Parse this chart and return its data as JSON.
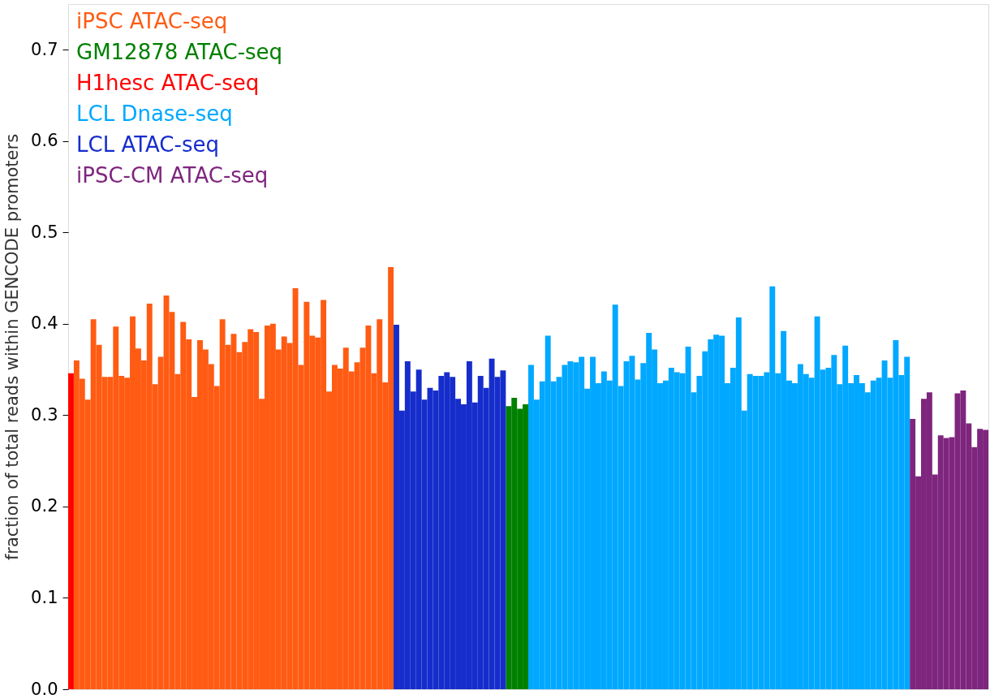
{
  "chart_data": {
    "type": "bar",
    "ylabel": "fraction of total reads within GENCODE promoters",
    "ylim": [
      0,
      0.75
    ],
    "yticks": [
      {
        "value": 0,
        "label": "0.0"
      },
      0.1,
      0.2,
      0.3,
      0.4,
      0.5,
      0.6,
      0.7
    ],
    "grid": false,
    "legend": "top left",
    "stacked": true,
    "categories": [
      null,
      null,
      null,
      null,
      null,
      null,
      null,
      null,
      null,
      null,
      null,
      null,
      null,
      null,
      null,
      null,
      null,
      null,
      null,
      null,
      null,
      null,
      null,
      null,
      null,
      null,
      null,
      null,
      null,
      null,
      null,
      null,
      null,
      null,
      null,
      null,
      null,
      null,
      null,
      null,
      null,
      null,
      null,
      null,
      null,
      null,
      null,
      null,
      null,
      null,
      null,
      null,
      null,
      null,
      null,
      null,
      null,
      null,
      null,
      null,
      null,
      null,
      null,
      null,
      null,
      null,
      null,
      null,
      null,
      null,
      null,
      null,
      null,
      null,
      null,
      null,
      null,
      null,
      null,
      null,
      null,
      null,
      null,
      null,
      null,
      null,
      null,
      null,
      null,
      null,
      null,
      null,
      null,
      null,
      null,
      null,
      null,
      null,
      null,
      null,
      null,
      null,
      null,
      null,
      null,
      null,
      null,
      null,
      null,
      null,
      null,
      null,
      null,
      null,
      null,
      null,
      null,
      null,
      null,
      null,
      null,
      null,
      null,
      null,
      null,
      null,
      null,
      null,
      null,
      null,
      null,
      null,
      null,
      null,
      null,
      null,
      null,
      null,
      null,
      null,
      null,
      null,
      null,
      null,
      null,
      null,
      null,
      null,
      null,
      null,
      null,
      null,
      null,
      null,
      null,
      null,
      null,
      null,
      null,
      null,
      null,
      null,
      null,
      null
    ],
    "series": [
      {
        "name": "iPSC ATAC-seq",
        "color": "#ff5b13",
        "values": [
          null,
          0.36,
          0.34,
          0.317,
          0.405,
          0.377,
          0.342,
          0.342,
          0.397,
          0.343,
          0.341,
          0.408,
          0.373,
          0.36,
          0.422,
          0.334,
          0.364,
          0.431,
          0.413,
          0.345,
          0.402,
          0.383,
          0.32,
          0.382,
          0.372,
          0.356,
          0.332,
          0.405,
          0.377,
          0.389,
          0.369,
          0.38,
          0.394,
          0.391,
          0.318,
          0.398,
          0.4,
          0.372,
          0.386,
          0.379,
          0.439,
          0.355,
          0.424,
          0.387,
          0.385,
          0.426,
          0.326,
          0.355,
          0.351,
          0.374,
          0.348,
          0.358,
          0.374,
          0.398,
          0.346,
          0.405,
          0.336,
          0.462,
          null,
          null,
          null,
          null,
          null,
          null,
          null,
          null,
          null,
          null,
          null,
          null,
          null,
          null,
          null,
          null,
          null,
          null,
          null,
          null,
          null,
          null,
          null,
          null,
          null,
          null,
          null,
          null,
          null,
          null,
          null,
          null,
          null,
          null,
          null,
          null,
          null,
          null,
          null,
          null,
          null,
          null,
          null,
          null,
          null,
          null,
          null,
          null,
          null,
          null,
          null,
          null,
          null,
          null,
          null,
          null,
          null,
          null,
          null,
          null,
          null,
          null,
          null,
          null,
          null,
          null,
          null,
          null,
          null,
          null,
          null,
          null,
          null,
          null,
          null,
          null,
          null,
          null,
          null,
          null,
          null,
          null,
          null,
          null,
          null,
          null,
          null,
          null,
          null,
          null,
          null,
          null,
          null,
          null,
          null,
          null,
          null,
          null,
          null,
          null,
          null,
          null,
          null,
          null,
          null,
          null
        ]
      },
      {
        "name": "GM12878 ATAC-seq",
        "color": "#008000",
        "values": [
          null,
          null,
          null,
          null,
          null,
          null,
          null,
          null,
          null,
          null,
          null,
          null,
          null,
          null,
          null,
          null,
          null,
          null,
          null,
          null,
          null,
          null,
          null,
          null,
          null,
          null,
          null,
          null,
          null,
          null,
          null,
          null,
          null,
          null,
          null,
          null,
          null,
          null,
          null,
          null,
          null,
          null,
          null,
          null,
          null,
          null,
          null,
          null,
          null,
          null,
          null,
          null,
          null,
          null,
          null,
          null,
          null,
          null,
          null,
          null,
          null,
          null,
          null,
          null,
          null,
          null,
          null,
          null,
          null,
          null,
          null,
          null,
          null,
          null,
          null,
          null,
          null,
          null,
          0.31,
          0.319,
          0.307,
          0.312,
          null,
          null,
          null,
          null,
          null,
          null,
          null,
          null,
          null,
          null,
          null,
          null,
          null,
          null,
          null,
          null,
          null,
          null,
          null,
          null,
          null,
          null,
          null,
          null,
          null,
          null,
          null,
          null,
          null,
          null,
          null,
          null,
          null,
          null,
          null,
          null,
          null,
          null,
          null,
          null,
          null,
          null,
          null,
          null,
          null,
          null,
          null,
          null,
          null,
          null,
          null,
          null,
          null,
          null,
          null,
          null,
          null,
          null,
          null,
          null,
          null,
          null,
          null,
          null,
          null,
          null,
          null,
          null,
          null,
          null,
          null,
          null,
          null,
          null,
          null,
          null,
          null,
          null,
          null,
          null,
          null,
          null
        ]
      },
      {
        "name": "H1hesc ATAC-seq",
        "color": "#ff0000",
        "values": [
          0.346,
          null,
          null,
          null,
          null,
          null,
          null,
          null,
          null,
          null,
          null,
          null,
          null,
          null,
          null,
          null,
          null,
          null,
          null,
          null,
          null,
          null,
          null,
          null,
          null,
          null,
          null,
          null,
          null,
          null,
          null,
          null,
          null,
          null,
          null,
          null,
          null,
          null,
          null,
          null,
          null,
          null,
          null,
          null,
          null,
          null,
          null,
          null,
          null,
          null,
          null,
          null,
          null,
          null,
          null,
          null,
          null,
          null,
          null,
          null,
          null,
          null,
          null,
          null,
          null,
          null,
          null,
          null,
          null,
          null,
          null,
          null,
          null,
          null,
          null,
          null,
          null,
          null,
          null,
          null,
          null,
          null,
          null,
          null,
          null,
          null,
          null,
          null,
          null,
          null,
          null,
          null,
          null,
          null,
          null,
          null,
          null,
          null,
          null,
          null,
          null,
          null,
          null,
          null,
          null,
          null,
          null,
          null,
          null,
          null,
          null,
          null,
          null,
          null,
          null,
          null,
          null,
          null,
          null,
          null,
          null,
          null,
          null,
          null,
          null,
          null,
          null,
          null,
          null,
          null,
          null,
          null,
          null,
          null,
          null,
          null,
          null,
          null,
          null,
          null,
          null,
          null,
          null,
          null,
          null,
          null,
          null,
          null,
          null,
          null,
          null,
          null,
          null,
          null,
          null,
          null,
          null,
          null,
          null,
          null,
          null,
          null,
          null,
          null
        ]
      },
      {
        "name": "LCL Dnase-seq",
        "color": "#00a8ff",
        "values": [
          null,
          null,
          null,
          null,
          null,
          null,
          null,
          null,
          null,
          null,
          null,
          null,
          null,
          null,
          null,
          null,
          null,
          null,
          null,
          null,
          null,
          null,
          null,
          null,
          null,
          null,
          null,
          null,
          null,
          null,
          null,
          null,
          null,
          null,
          null,
          null,
          null,
          null,
          null,
          null,
          null,
          null,
          null,
          null,
          null,
          null,
          null,
          null,
          null,
          null,
          null,
          null,
          null,
          null,
          null,
          null,
          null,
          null,
          null,
          null,
          null,
          null,
          null,
          null,
          null,
          null,
          null,
          null,
          null,
          null,
          null,
          null,
          null,
          null,
          null,
          null,
          null,
          null,
          null,
          null,
          null,
          null,
          0.355,
          0.317,
          0.337,
          0.387,
          0.337,
          0.342,
          0.355,
          0.359,
          0.358,
          0.364,
          0.329,
          0.364,
          0.335,
          0.348,
          0.338,
          0.421,
          0.332,
          0.359,
          0.365,
          0.339,
          0.357,
          0.39,
          0.372,
          0.335,
          0.338,
          0.352,
          0.347,
          0.346,
          0.375,
          0.325,
          0.343,
          0.37,
          0.383,
          0.388,
          0.387,
          0.335,
          0.352,
          0.407,
          0.305,
          0.345,
          0.343,
          0.343,
          0.347,
          0.441,
          0.346,
          0.392,
          0.338,
          0.335,
          0.356,
          0.345,
          0.341,
          0.408,
          0.35,
          0.352,
          0.366,
          0.334,
          0.376,
          0.335,
          0.344,
          0.335,
          0.325,
          0.338,
          0.341,
          0.36,
          0.341,
          0.382,
          0.344,
          0.364,
          null,
          null,
          null,
          null,
          null,
          null,
          null,
          null,
          null,
          null,
          null,
          null,
          null,
          null
        ]
      },
      {
        "name": "LCL ATAC-seq",
        "color": "#162dcc",
        "values": [
          null,
          null,
          null,
          null,
          null,
          null,
          null,
          null,
          null,
          null,
          null,
          null,
          null,
          null,
          null,
          null,
          null,
          null,
          null,
          null,
          null,
          null,
          null,
          null,
          null,
          null,
          null,
          null,
          null,
          null,
          null,
          null,
          null,
          null,
          null,
          null,
          null,
          null,
          null,
          null,
          null,
          null,
          null,
          null,
          null,
          null,
          null,
          null,
          null,
          null,
          null,
          null,
          null,
          null,
          null,
          null,
          null,
          null,
          0.399,
          0.305,
          0.359,
          0.326,
          0.35,
          0.317,
          0.33,
          0.327,
          0.343,
          0.347,
          0.342,
          0.318,
          0.312,
          0.359,
          0.314,
          0.343,
          0.33,
          0.362,
          0.342,
          0.349,
          null,
          null,
          null,
          null,
          null,
          null,
          null,
          null,
          null,
          null,
          null,
          null,
          null,
          null,
          null,
          null,
          null,
          null,
          null,
          null,
          null,
          null,
          null,
          null,
          null,
          null,
          null,
          null,
          null,
          null,
          null,
          null,
          null,
          null,
          null,
          null,
          null,
          null,
          null,
          null,
          null,
          null,
          null,
          null,
          null,
          null,
          null,
          null,
          null,
          null,
          null,
          null,
          null,
          null,
          null,
          null,
          null,
          null,
          null,
          null,
          null,
          null,
          null,
          null,
          null,
          null,
          null,
          null,
          null,
          null,
          null,
          null,
          null,
          null,
          null,
          null,
          null,
          null,
          null,
          null,
          null,
          null,
          null,
          null,
          null,
          null
        ]
      },
      {
        "name": "iPSC-CM ATAC-seq",
        "color": "#7e257e",
        "values": [
          null,
          null,
          null,
          null,
          null,
          null,
          null,
          null,
          null,
          null,
          null,
          null,
          null,
          null,
          null,
          null,
          null,
          null,
          null,
          null,
          null,
          null,
          null,
          null,
          null,
          null,
          null,
          null,
          null,
          null,
          null,
          null,
          null,
          null,
          null,
          null,
          null,
          null,
          null,
          null,
          null,
          null,
          null,
          null,
          null,
          null,
          null,
          null,
          null,
          null,
          null,
          null,
          null,
          null,
          null,
          null,
          null,
          null,
          null,
          null,
          null,
          null,
          null,
          null,
          null,
          null,
          null,
          null,
          null,
          null,
          null,
          null,
          null,
          null,
          null,
          null,
          null,
          null,
          null,
          null,
          null,
          null,
          null,
          null,
          null,
          null,
          null,
          null,
          null,
          null,
          null,
          null,
          null,
          null,
          null,
          null,
          null,
          null,
          null,
          null,
          null,
          null,
          null,
          null,
          null,
          null,
          null,
          null,
          null,
          null,
          null,
          null,
          null,
          null,
          null,
          null,
          null,
          null,
          null,
          null,
          null,
          null,
          null,
          null,
          null,
          null,
          null,
          null,
          null,
          null,
          null,
          null,
          null,
          null,
          null,
          null,
          null,
          null,
          null,
          null,
          null,
          null,
          null,
          null,
          null,
          null,
          null,
          null,
          null,
          null,
          0.296,
          0.233,
          0.318,
          0.325,
          0.235,
          0.278,
          0.275,
          0.276,
          0.324,
          0.327,
          0.291,
          0.265,
          0.285,
          0.284
        ]
      }
    ]
  }
}
